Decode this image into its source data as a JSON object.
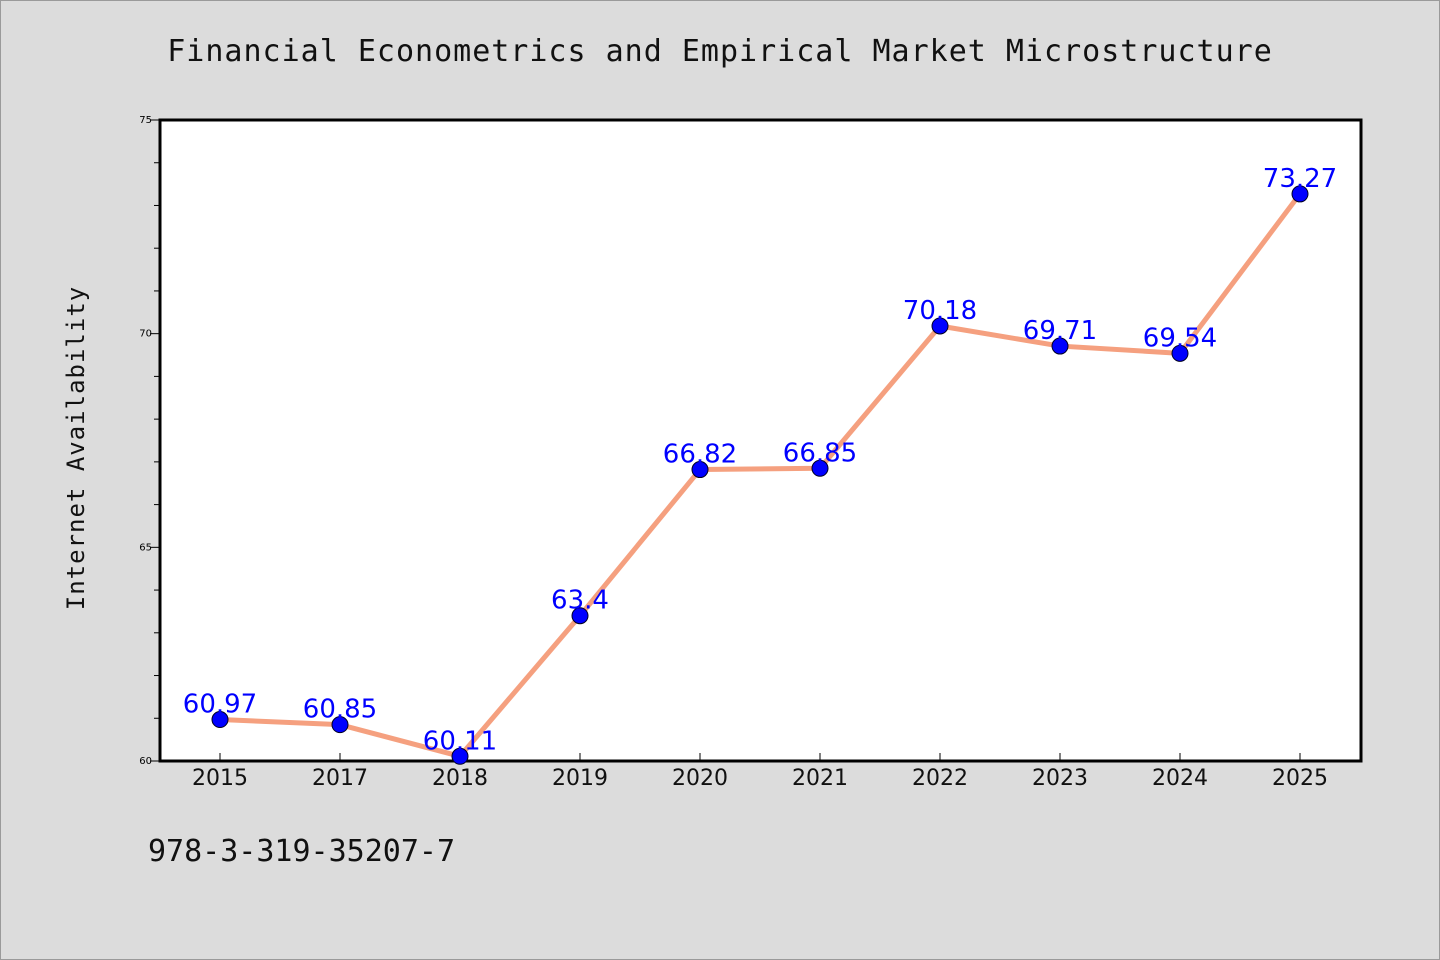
{
  "chart_data": {
    "type": "line",
    "title": "Financial Econometrics and Empirical Market Microstructure",
    "xlabel": "",
    "ylabel": "Internet Availability",
    "categories": [
      "2015",
      "2017",
      "2018",
      "2019",
      "2020",
      "2021",
      "2022",
      "2023",
      "2024",
      "2025"
    ],
    "series": [
      {
        "values": [
          60.97,
          60.85,
          60.11,
          63.4,
          66.82,
          66.85,
          70.18,
          69.71,
          69.54,
          73.27
        ],
        "labels": [
          "60.97",
          "60.85",
          "60.11",
          "63.4",
          "66.82",
          "66.85",
          "70.18",
          "69.71",
          "69.54",
          "73.27"
        ]
      }
    ],
    "ylim": [
      60,
      75
    ],
    "yticks": [
      "60",
      "65",
      "70",
      "75"
    ],
    "grid": false,
    "legend": "none",
    "colors": {
      "line": "#f5a07f",
      "marker": "#0000ff",
      "label": "#0000ff",
      "background": "#dcdcdc",
      "plot_area": "#ffffff"
    }
  },
  "footer": {
    "isbn": "978-3-319-35207-7"
  }
}
